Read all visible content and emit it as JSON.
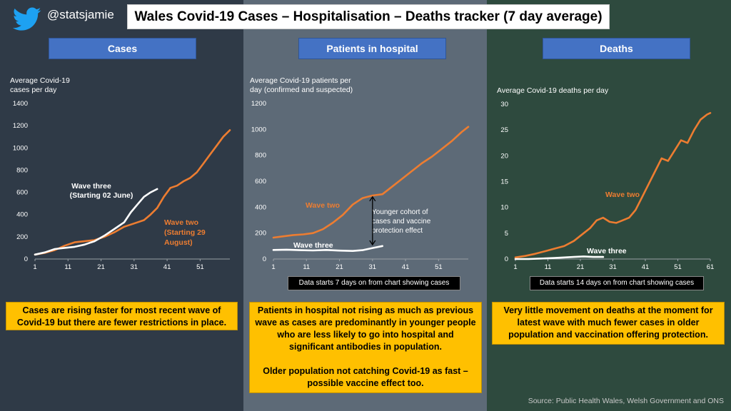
{
  "title": "Wales Covid-19 Cases – Hospitalisation – Deaths tracker (7 day average)",
  "handle": "@statsjamie",
  "source": "Source: Public Health Wales, Welsh Government and ONS",
  "colors": {
    "wave_two": "#ed7d31",
    "wave_three": "#ffffff",
    "header": "#4472c4",
    "callout": "#ffc000"
  },
  "panels": {
    "cases": {
      "header": "Cases",
      "ylabel": "Average Covid-19 cases per day",
      "callout": "Cases are rising faster for most recent wave of Covid-19 but there are fewer restrictions in place."
    },
    "hospital": {
      "header": "Patients in hospital",
      "ylabel": "Average Covid-19 patients per day (confirmed and suspected)",
      "note": "Data starts 7 days on from chart showing cases",
      "callout": "Patients in hospital not rising as much as previous wave as cases are predominantly in younger people who are less likely to go into hospital and significant antibodies in population.\n\nOlder population not catching Covid-19 as fast – possible vaccine effect too."
    },
    "deaths": {
      "header": "Deaths",
      "ylabel": "Average Covid-19 deaths per day",
      "note": "Data starts 14 days on from chart showing cases",
      "callout": "Very little movement on deaths at the moment for latest wave with much fewer cases in older population and vaccination offering protection."
    }
  },
  "chart_data": [
    {
      "type": "line",
      "title": "Cases",
      "ylabel": "Average Covid-19 cases per day",
      "ylim": [
        0,
        1400
      ],
      "yticks": [
        0,
        200,
        400,
        600,
        800,
        1000,
        1200,
        1400
      ],
      "xlim": [
        1,
        60
      ],
      "xticks": [
        1,
        11,
        21,
        31,
        41,
        51
      ],
      "series": [
        {
          "name": "Wave two",
          "label": "Wave two (Starting 29 August)",
          "color": "#ed7d31",
          "x": [
            1,
            4,
            7,
            10,
            13,
            16,
            19,
            22,
            25,
            28,
            31,
            34,
            36,
            38,
            40,
            42,
            44,
            46,
            48,
            50,
            52,
            54,
            56,
            58,
            60
          ],
          "values": [
            40,
            55,
            80,
            120,
            150,
            160,
            170,
            200,
            240,
            290,
            320,
            350,
            400,
            460,
            560,
            640,
            660,
            700,
            730,
            780,
            860,
            940,
            1020,
            1100,
            1160
          ]
        },
        {
          "name": "Wave three",
          "label": "Wave three (Starting 02 June)",
          "color": "#ffffff",
          "x": [
            1,
            4,
            7,
            10,
            13,
            16,
            19,
            22,
            25,
            28,
            30,
            32,
            34,
            36,
            38
          ],
          "values": [
            40,
            60,
            90,
            100,
            110,
            130,
            160,
            210,
            270,
            330,
            420,
            490,
            560,
            600,
            630
          ]
        }
      ],
      "annotations": [
        {
          "text": "Wave three",
          "series": "Wave three"
        },
        {
          "text": "(Starting 02 June)",
          "series": "Wave three"
        },
        {
          "text": "Wave two",
          "series": "Wave two"
        },
        {
          "text": "(Starting 29",
          "series": "Wave two"
        },
        {
          "text": "August)",
          "series": "Wave two"
        }
      ]
    },
    {
      "type": "line",
      "title": "Patients in hospital",
      "ylabel": "Average Covid-19 patients per day (confirmed and suspected)",
      "ylim": [
        0,
        1200
      ],
      "yticks": [
        0,
        200,
        400,
        600,
        800,
        1000,
        1200
      ],
      "xlim": [
        1,
        60
      ],
      "xticks": [
        1,
        11,
        21,
        31,
        41,
        51
      ],
      "series": [
        {
          "name": "Wave two",
          "color": "#ed7d31",
          "x": [
            1,
            4,
            7,
            10,
            13,
            16,
            19,
            22,
            25,
            28,
            31,
            34,
            37,
            40,
            43,
            46,
            49,
            52,
            55,
            58,
            60
          ],
          "values": [
            165,
            175,
            185,
            190,
            200,
            230,
            280,
            340,
            420,
            470,
            490,
            500,
            560,
            620,
            680,
            740,
            790,
            850,
            910,
            980,
            1020
          ]
        },
        {
          "name": "Wave three",
          "color": "#ffffff",
          "x": [
            1,
            5,
            9,
            13,
            17,
            21,
            25,
            28,
            31,
            34
          ],
          "values": [
            70,
            72,
            68,
            66,
            70,
            65,
            62,
            68,
            85,
            100
          ]
        }
      ],
      "annotations": [
        {
          "text": "Wave two",
          "series": "Wave two"
        },
        {
          "text": "Wave three",
          "series": "Wave three"
        },
        {
          "text": "Younger cohort of cases and vaccine protection effect"
        }
      ]
    },
    {
      "type": "line",
      "title": "Deaths",
      "ylabel": "Average Covid-19 deaths per day",
      "ylim": [
        0,
        30
      ],
      "yticks": [
        0,
        5,
        10,
        15,
        20,
        25,
        30
      ],
      "xlim": [
        1,
        61
      ],
      "xticks": [
        1,
        11,
        21,
        31,
        41,
        51,
        61
      ],
      "series": [
        {
          "name": "Wave two",
          "color": "#ed7d31",
          "x": [
            1,
            4,
            7,
            10,
            13,
            16,
            19,
            22,
            24,
            26,
            28,
            30,
            32,
            34,
            36,
            38,
            40,
            42,
            44,
            46,
            48,
            50,
            52,
            54,
            56,
            58,
            60,
            61
          ],
          "values": [
            0.3,
            0.6,
            1,
            1.5,
            2,
            2.5,
            3.5,
            5,
            6,
            7.5,
            8,
            7.2,
            7,
            7.5,
            8,
            9.5,
            12,
            14.5,
            17,
            19.5,
            19,
            21,
            23,
            22.5,
            25,
            27,
            28,
            28.3
          ]
        },
        {
          "name": "Wave three",
          "color": "#ffffff",
          "x": [
            1,
            5,
            9,
            13,
            16,
            19,
            22,
            25,
            28
          ],
          "values": [
            0,
            0,
            0.1,
            0.2,
            0.3,
            0.4,
            0.5,
            0.4,
            0.4
          ]
        }
      ],
      "annotations": [
        {
          "text": "Wave two",
          "series": "Wave two"
        },
        {
          "text": "Wave three",
          "series": "Wave three"
        }
      ]
    }
  ]
}
